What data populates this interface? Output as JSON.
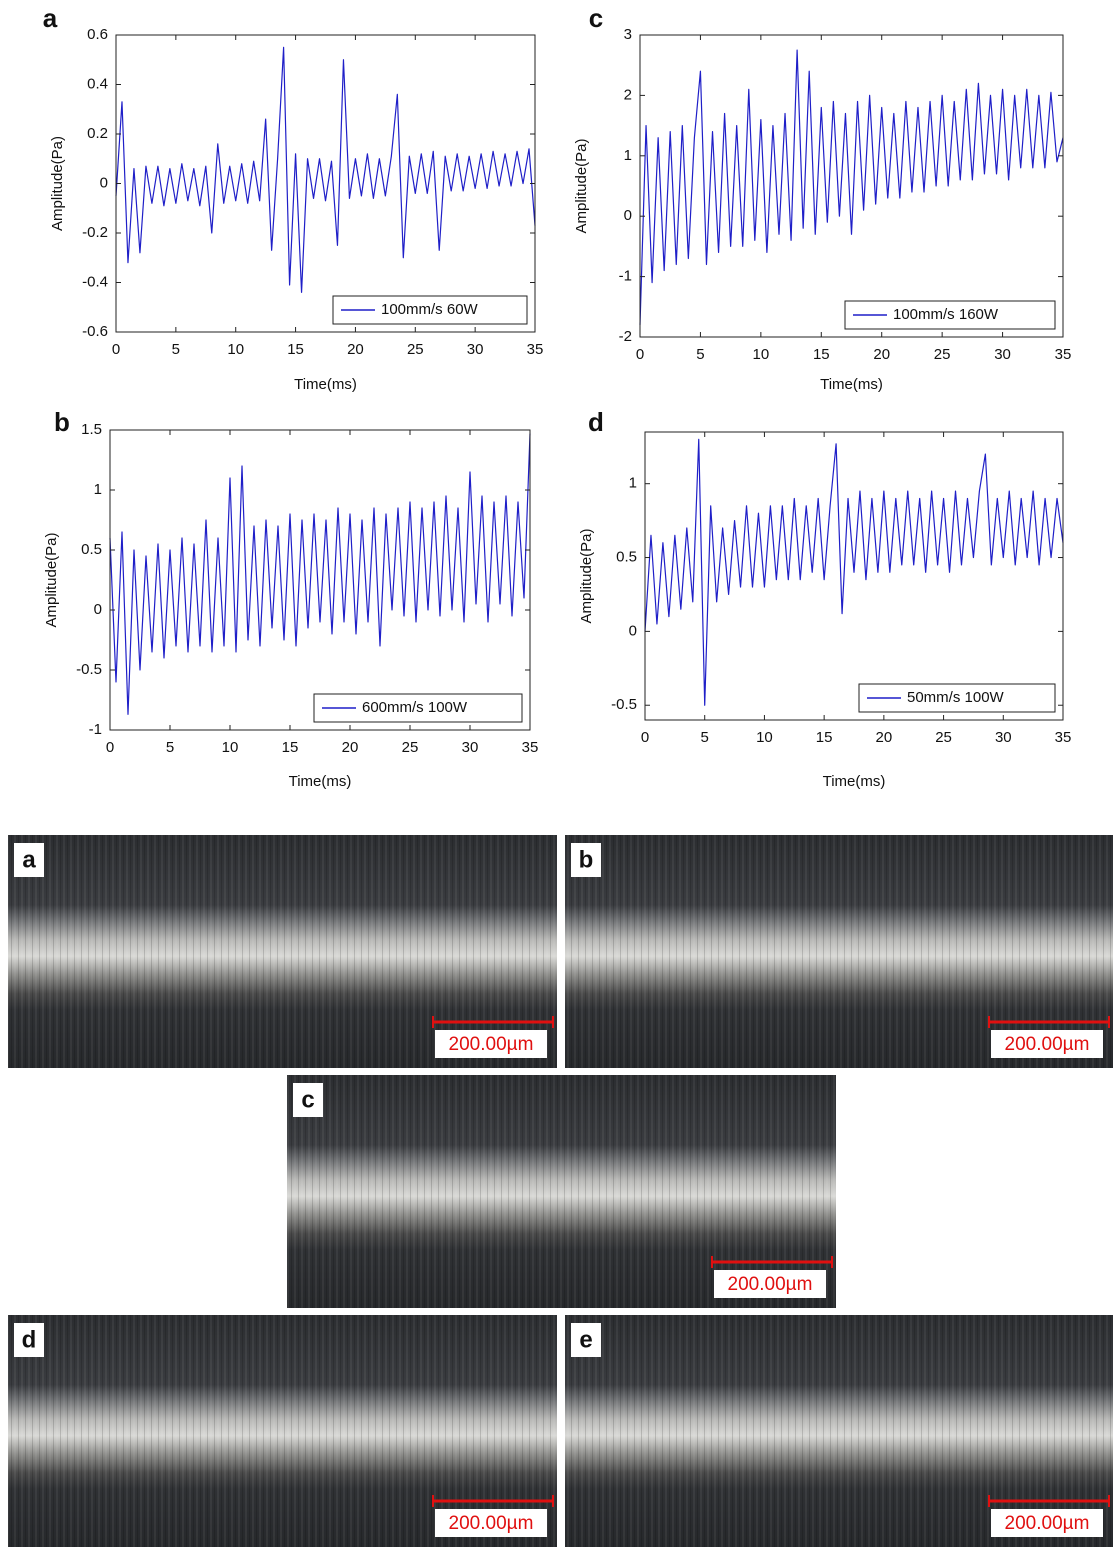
{
  "chart_data": [
    {
      "type": "line",
      "panel": "a",
      "xlabel": "Time(ms)",
      "ylabel": "Amplitude(Pa)",
      "legend": "lower right",
      "xlim": [
        0,
        35
      ],
      "xticks": [
        0,
        5,
        10,
        15,
        20,
        25,
        30,
        35
      ],
      "ylim": [
        -0.6,
        0.6
      ],
      "yticks": [
        -0.6,
        -0.4,
        -0.2,
        0,
        0.2,
        0.4,
        0.6
      ],
      "x": [
        0,
        0.5,
        1,
        1.5,
        2,
        2.5,
        3,
        3.5,
        4,
        4.5,
        5,
        5.5,
        6,
        6.5,
        7,
        7.5,
        8,
        8.5,
        9,
        9.5,
        10,
        10.5,
        11,
        11.5,
        12,
        12.5,
        13,
        13.5,
        14,
        14.5,
        15,
        15.5,
        16,
        16.5,
        17,
        17.5,
        18,
        18.5,
        19,
        19.5,
        20,
        20.5,
        21,
        21.5,
        22,
        22.5,
        23,
        23.5,
        24,
        24.5,
        25,
        25.5,
        26,
        26.5,
        27,
        27.5,
        28,
        28.5,
        29,
        29.5,
        30,
        30.5,
        31,
        31.5,
        32,
        32.5,
        33,
        33.5,
        34,
        34.5,
        35
      ],
      "series": [
        {
          "name": "100mm/s 60W",
          "color": "#1f1fc8",
          "values": [
            -0.05,
            0.33,
            -0.32,
            0.06,
            -0.28,
            0.07,
            -0.08,
            0.07,
            -0.09,
            0.06,
            -0.08,
            0.08,
            -0.07,
            0.06,
            -0.09,
            0.07,
            -0.2,
            0.16,
            -0.08,
            0.07,
            -0.07,
            0.08,
            -0.08,
            0.09,
            -0.07,
            0.26,
            -0.27,
            0.1,
            0.55,
            -0.41,
            0.12,
            -0.44,
            0.1,
            -0.06,
            0.1,
            -0.07,
            0.09,
            -0.25,
            0.5,
            -0.06,
            0.1,
            -0.05,
            0.12,
            -0.06,
            0.1,
            -0.05,
            0.11,
            0.36,
            -0.3,
            0.11,
            -0.04,
            0.12,
            -0.04,
            0.13,
            -0.27,
            0.11,
            -0.03,
            0.12,
            -0.03,
            0.11,
            -0.02,
            0.12,
            -0.02,
            0.13,
            -0.01,
            0.12,
            -0.01,
            0.13,
            0,
            0.14,
            -0.17
          ]
        }
      ]
    },
    {
      "type": "line",
      "panel": "b",
      "xlabel": "Time(ms)",
      "ylabel": "Amplitude(Pa)",
      "legend": "lower right",
      "xlim": [
        0,
        35
      ],
      "xticks": [
        0,
        5,
        10,
        15,
        20,
        25,
        30,
        35
      ],
      "ylim": [
        -1,
        1.5
      ],
      "yticks": [
        -1,
        -0.5,
        0,
        0.5,
        1,
        1.5
      ],
      "x": [
        0,
        0.5,
        1,
        1.5,
        2,
        2.5,
        3,
        3.5,
        4,
        4.5,
        5,
        5.5,
        6,
        6.5,
        7,
        7.5,
        8,
        8.5,
        9,
        9.5,
        10,
        10.5,
        11,
        11.5,
        12,
        12.5,
        13,
        13.5,
        14,
        14.5,
        15,
        15.5,
        16,
        16.5,
        17,
        17.5,
        18,
        18.5,
        19,
        19.5,
        20,
        20.5,
        21,
        21.5,
        22,
        22.5,
        23,
        23.5,
        24,
        24.5,
        25,
        25.5,
        26,
        26.5,
        27,
        27.5,
        28,
        28.5,
        29,
        29.5,
        30,
        30.5,
        31,
        31.5,
        32,
        32.5,
        33,
        33.5,
        34,
        34.5,
        35
      ],
      "series": [
        {
          "name": "600mm/s 100W",
          "color": "#1f1fc8",
          "values": [
            0.6,
            -0.6,
            0.65,
            -0.87,
            0.5,
            -0.5,
            0.45,
            -0.35,
            0.55,
            -0.4,
            0.5,
            -0.3,
            0.6,
            -0.35,
            0.55,
            -0.3,
            0.75,
            -0.35,
            0.6,
            -0.3,
            1.1,
            -0.35,
            1.2,
            -0.25,
            0.7,
            -0.3,
            0.75,
            -0.15,
            0.7,
            -0.25,
            0.8,
            -0.3,
            0.75,
            -0.15,
            0.8,
            -0.1,
            0.75,
            -0.2,
            0.85,
            -0.1,
            0.8,
            -0.2,
            0.75,
            -0.1,
            0.85,
            -0.3,
            0.8,
            0,
            0.85,
            -0.05,
            0.9,
            -0.1,
            0.85,
            0,
            0.9,
            -0.05,
            0.95,
            0,
            0.85,
            -0.1,
            1.15,
            0.05,
            0.95,
            -0.1,
            0.9,
            0.05,
            0.95,
            -0.05,
            0.9,
            0.1,
            1.47
          ]
        }
      ]
    },
    {
      "type": "line",
      "panel": "c",
      "xlabel": "Time(ms)",
      "ylabel": "Amplitude(Pa)",
      "legend": "lower right",
      "xlim": [
        0,
        35
      ],
      "xticks": [
        0,
        5,
        10,
        15,
        20,
        25,
        30,
        35
      ],
      "ylim": [
        -2,
        3
      ],
      "yticks": [
        -2,
        -1,
        0,
        1,
        2,
        3
      ],
      "x": [
        0,
        0.5,
        1,
        1.5,
        2,
        2.5,
        3,
        3.5,
        4,
        4.5,
        5,
        5.5,
        6,
        6.5,
        7,
        7.5,
        8,
        8.5,
        9,
        9.5,
        10,
        10.5,
        11,
        11.5,
        12,
        12.5,
        13,
        13.5,
        14,
        14.5,
        15,
        15.5,
        16,
        16.5,
        17,
        17.5,
        18,
        18.5,
        19,
        19.5,
        20,
        20.5,
        21,
        21.5,
        22,
        22.5,
        23,
        23.5,
        24,
        24.5,
        25,
        25.5,
        26,
        26.5,
        27,
        27.5,
        28,
        28.5,
        29,
        29.5,
        30,
        30.5,
        31,
        31.5,
        32,
        32.5,
        33,
        33.5,
        34,
        34.5,
        35
      ],
      "series": [
        {
          "name": "100mm/s 160W",
          "color": "#1f1fc8",
          "values": [
            -1.8,
            1.5,
            -1.1,
            1.3,
            -0.9,
            1.4,
            -0.8,
            1.5,
            -0.7,
            1.3,
            2.4,
            -0.8,
            1.4,
            -0.6,
            1.7,
            -0.5,
            1.5,
            -0.5,
            2.1,
            -0.4,
            1.6,
            -0.6,
            1.5,
            -0.3,
            1.7,
            -0.4,
            2.75,
            -0.2,
            2.4,
            -0.3,
            1.8,
            -0.1,
            1.9,
            0,
            1.7,
            -0.3,
            1.9,
            0.1,
            2,
            0.2,
            1.8,
            0.3,
            1.7,
            0.3,
            1.9,
            0.4,
            1.8,
            0.4,
            1.9,
            0.5,
            2,
            0.5,
            1.9,
            0.6,
            2.1,
            0.6,
            2.2,
            0.7,
            2,
            0.7,
            2.1,
            0.6,
            2,
            0.8,
            2.1,
            0.8,
            2,
            0.8,
            2.05,
            0.9,
            1.3
          ]
        }
      ]
    },
    {
      "type": "line",
      "panel": "d",
      "xlabel": "Time(ms)",
      "ylabel": "Amplitude(Pa)",
      "legend": "lower right",
      "xlim": [
        0,
        35
      ],
      "xticks": [
        0,
        5,
        10,
        15,
        20,
        25,
        30,
        35
      ],
      "ylim": [
        -0.6,
        1.35
      ],
      "yticks": [
        -0.5,
        0,
        0.5,
        1
      ],
      "x": [
        0,
        0.5,
        1,
        1.5,
        2,
        2.5,
        3,
        3.5,
        4,
        4.5,
        5,
        5.5,
        6,
        6.5,
        7,
        7.5,
        8,
        8.5,
        9,
        9.5,
        10,
        10.5,
        11,
        11.5,
        12,
        12.5,
        13,
        13.5,
        14,
        14.5,
        15,
        15.5,
        16,
        16.5,
        17,
        17.5,
        18,
        18.5,
        19,
        19.5,
        20,
        20.5,
        21,
        21.5,
        22,
        22.5,
        23,
        23.5,
        24,
        24.5,
        25,
        25.5,
        26,
        26.5,
        27,
        27.5,
        28,
        28.5,
        29,
        29.5,
        30,
        30.5,
        31,
        31.5,
        32,
        32.5,
        33,
        33.5,
        34,
        34.5,
        35
      ],
      "series": [
        {
          "name": "50mm/s 100W",
          "color": "#1f1fc8",
          "values": [
            0,
            0.65,
            0.05,
            0.6,
            0.1,
            0.65,
            0.15,
            0.7,
            0.2,
            1.3,
            -0.5,
            0.85,
            0.2,
            0.7,
            0.25,
            0.75,
            0.3,
            0.85,
            0.3,
            0.8,
            0.3,
            0.85,
            0.35,
            0.85,
            0.35,
            0.9,
            0.35,
            0.85,
            0.4,
            0.9,
            0.35,
            0.85,
            1.27,
            0.12,
            0.9,
            0.4,
            0.95,
            0.35,
            0.9,
            0.4,
            0.95,
            0.4,
            0.9,
            0.45,
            0.95,
            0.45,
            0.9,
            0.4,
            0.95,
            0.45,
            0.9,
            0.4,
            0.95,
            0.45,
            0.9,
            0.5,
            0.95,
            1.2,
            0.45,
            0.9,
            0.5,
            0.95,
            0.45,
            0.9,
            0.5,
            0.95,
            0.45,
            0.9,
            0.5,
            0.9,
            0.6
          ]
        }
      ]
    }
  ],
  "micrographs": [
    {
      "label": "a",
      "scale_bar": "200.00µm"
    },
    {
      "label": "b",
      "scale_bar": "200.00µm"
    },
    {
      "label": "c",
      "scale_bar": "200.00µm"
    },
    {
      "label": "d",
      "scale_bar": "200.00µm"
    },
    {
      "label": "e",
      "scale_bar": "200.00µm"
    }
  ]
}
